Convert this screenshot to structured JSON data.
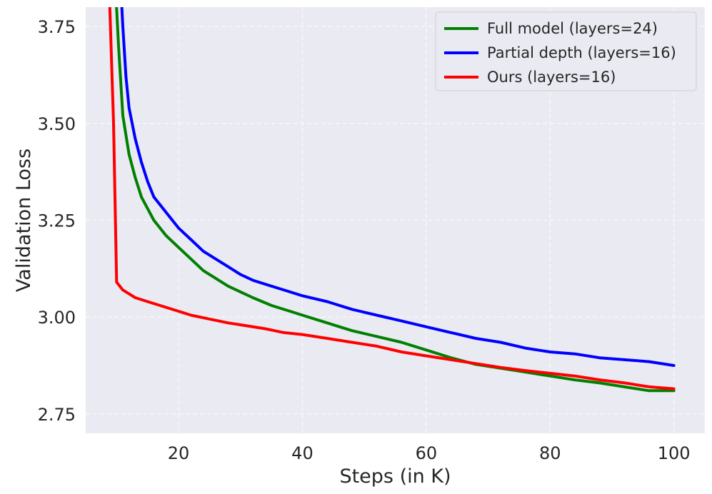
{
  "chart_data": {
    "type": "line",
    "title": "",
    "xlabel": "Steps (in K)",
    "ylabel": "Validation Loss",
    "xlim": [
      5,
      105
    ],
    "ylim": [
      2.7,
      3.8
    ],
    "x_ticks": [
      20,
      40,
      60,
      80,
      100
    ],
    "x_tick_labels": [
      "20",
      "40",
      "60",
      "80",
      "100"
    ],
    "y_ticks": [
      2.75,
      3.0,
      3.25,
      3.5,
      3.75
    ],
    "y_tick_labels": [
      "2.75",
      "3.00",
      "3.25",
      "3.50",
      "3.75"
    ],
    "grid": true,
    "legend_position": "top-right",
    "background_color": "#eaeaf2",
    "series": [
      {
        "name": "Full model (layers=24)",
        "color": "#008000",
        "points": [
          [
            9.5,
            3.95
          ],
          [
            10.3,
            3.7
          ],
          [
            11,
            3.52
          ],
          [
            12,
            3.42
          ],
          [
            13,
            3.36
          ],
          [
            14,
            3.31
          ],
          [
            15,
            3.28
          ],
          [
            16,
            3.25
          ],
          [
            18,
            3.21
          ],
          [
            20,
            3.18
          ],
          [
            22,
            3.15
          ],
          [
            24,
            3.12
          ],
          [
            26,
            3.1
          ],
          [
            28,
            3.08
          ],
          [
            30,
            3.065
          ],
          [
            32,
            3.05
          ],
          [
            35,
            3.03
          ],
          [
            38,
            3.015
          ],
          [
            40,
            3.005
          ],
          [
            44,
            2.985
          ],
          [
            48,
            2.965
          ],
          [
            52,
            2.95
          ],
          [
            56,
            2.935
          ],
          [
            60,
            2.915
          ],
          [
            64,
            2.895
          ],
          [
            68,
            2.878
          ],
          [
            72,
            2.868
          ],
          [
            76,
            2.858
          ],
          [
            80,
            2.848
          ],
          [
            84,
            2.838
          ],
          [
            88,
            2.83
          ],
          [
            92,
            2.82
          ],
          [
            96,
            2.81
          ],
          [
            100,
            2.81
          ]
        ]
      },
      {
        "name": "Partial depth (layers=16)",
        "color": "#0000ff",
        "points": [
          [
            10.5,
            3.9
          ],
          [
            11,
            3.75
          ],
          [
            11.5,
            3.62
          ],
          [
            12,
            3.54
          ],
          [
            13,
            3.46
          ],
          [
            14,
            3.4
          ],
          [
            15,
            3.35
          ],
          [
            16,
            3.31
          ],
          [
            18,
            3.27
          ],
          [
            20,
            3.23
          ],
          [
            22,
            3.2
          ],
          [
            24,
            3.17
          ],
          [
            26,
            3.15
          ],
          [
            28,
            3.13
          ],
          [
            30,
            3.11
          ],
          [
            32,
            3.095
          ],
          [
            35,
            3.08
          ],
          [
            38,
            3.065
          ],
          [
            40,
            3.055
          ],
          [
            44,
            3.04
          ],
          [
            48,
            3.02
          ],
          [
            52,
            3.005
          ],
          [
            56,
            2.99
          ],
          [
            60,
            2.975
          ],
          [
            64,
            2.96
          ],
          [
            68,
            2.945
          ],
          [
            72,
            2.935
          ],
          [
            76,
            2.92
          ],
          [
            80,
            2.91
          ],
          [
            84,
            2.905
          ],
          [
            88,
            2.895
          ],
          [
            92,
            2.89
          ],
          [
            96,
            2.885
          ],
          [
            100,
            2.875
          ]
        ]
      },
      {
        "name": "Ours (layers=16)",
        "color": "#ff0000",
        "points": [
          [
            8.8,
            3.85
          ],
          [
            9.5,
            3.5
          ],
          [
            10,
            3.09
          ],
          [
            11,
            3.07
          ],
          [
            12,
            3.06
          ],
          [
            13,
            3.05
          ],
          [
            15,
            3.04
          ],
          [
            17,
            3.03
          ],
          [
            20,
            3.015
          ],
          [
            22,
            3.005
          ],
          [
            25,
            2.995
          ],
          [
            28,
            2.985
          ],
          [
            30,
            2.98
          ],
          [
            34,
            2.97
          ],
          [
            37,
            2.96
          ],
          [
            40,
            2.955
          ],
          [
            44,
            2.945
          ],
          [
            48,
            2.935
          ],
          [
            52,
            2.925
          ],
          [
            56,
            2.91
          ],
          [
            60,
            2.9
          ],
          [
            64,
            2.89
          ],
          [
            68,
            2.88
          ],
          [
            72,
            2.87
          ],
          [
            76,
            2.862
          ],
          [
            80,
            2.855
          ],
          [
            84,
            2.848
          ],
          [
            88,
            2.838
          ],
          [
            92,
            2.83
          ],
          [
            96,
            2.82
          ],
          [
            100,
            2.815
          ]
        ]
      }
    ]
  }
}
